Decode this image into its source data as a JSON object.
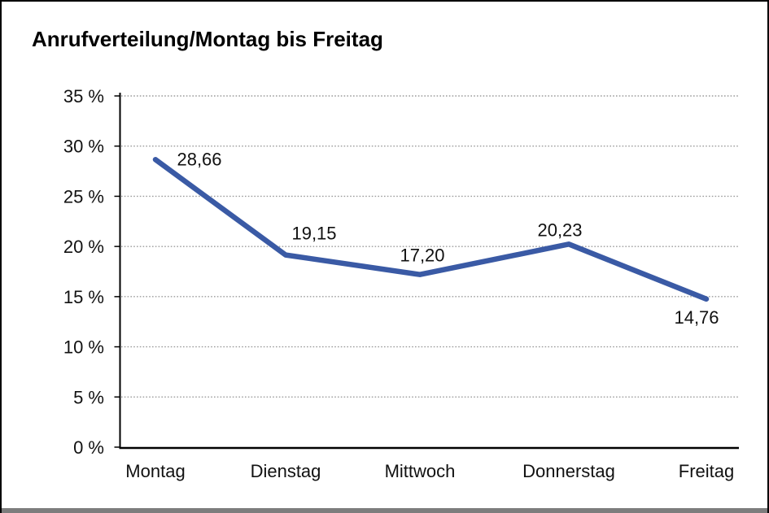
{
  "page": {
    "title": "Anrufverteilung/Montag bis Freitag"
  },
  "chart_data": {
    "type": "line",
    "title": "Anrufverteilung/Montag bis Freitag",
    "categories": [
      "Montag",
      "Dienstag",
      "Mittwoch",
      "Donnerstag",
      "Freitag"
    ],
    "series": [
      {
        "name": "Anrufverteilung",
        "values": [
          28.66,
          19.15,
          17.2,
          20.23,
          14.76
        ]
      }
    ],
    "data_labels": [
      "28,66",
      "19,15",
      "17,20",
      "20,23",
      "14,76"
    ],
    "xlabel": "",
    "ylabel": "",
    "ylim": [
      0,
      35
    ],
    "y_tick_step": 5,
    "y_tick_labels": [
      "0 %",
      "5 %",
      "10 %",
      "15 %",
      "20 %",
      "25 %",
      "30 %",
      "35 %"
    ],
    "grid": "horizontal-dotted",
    "legend": "none",
    "colors": {
      "line": "#3A5AA5",
      "grid": "#9C9C9C",
      "axis": "#000000",
      "text": "#111111"
    }
  }
}
